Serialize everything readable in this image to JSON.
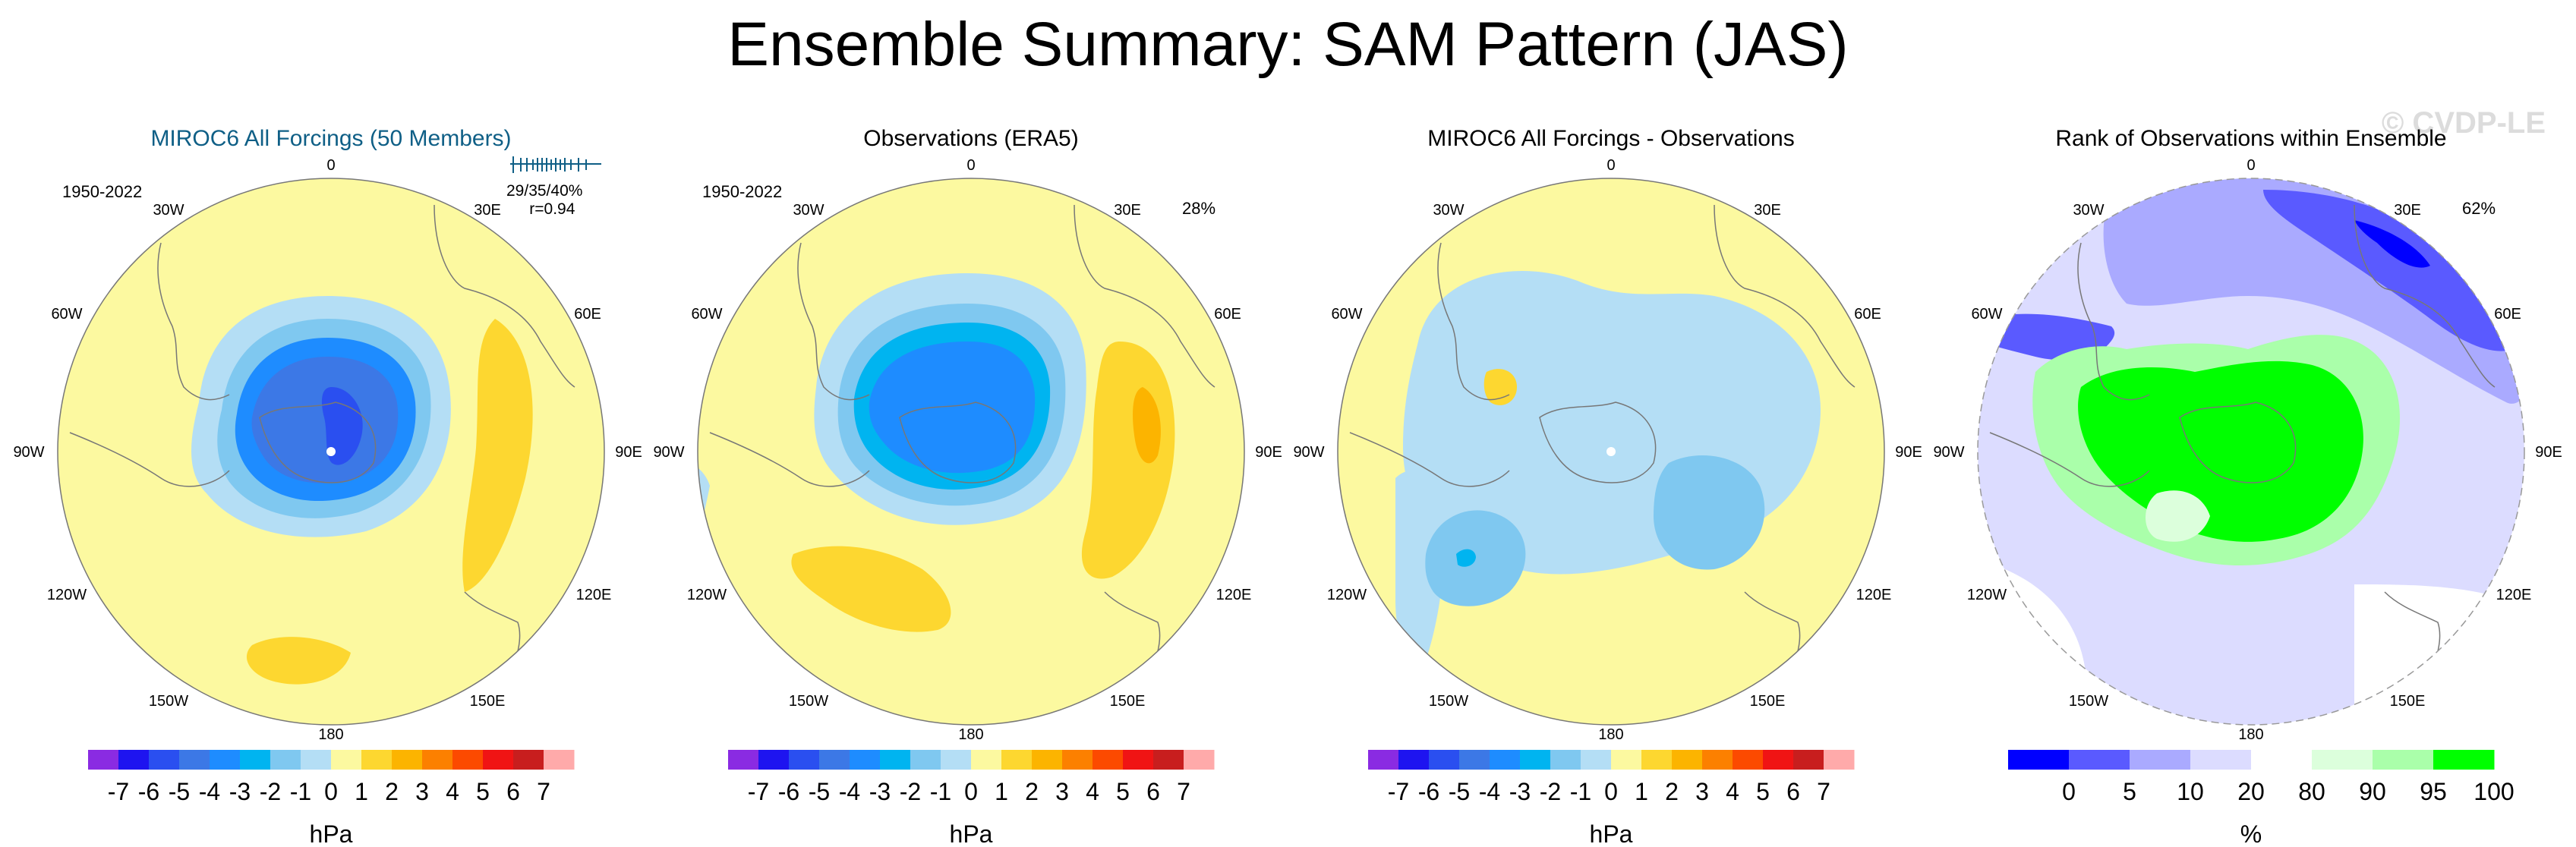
{
  "title": "Ensemble Summary: SAM Pattern (JAS)",
  "watermark": "© CVDP-LE",
  "colors": {
    "model_title": "#0f5f86",
    "land_outline": "#777777",
    "pressure_palette": [
      "#8a2be2",
      "#1e14f0",
      "#2a4ff0",
      "#3c78e6",
      "#1e8cff",
      "#00b4f0",
      "#7fc8f0",
      "#b4def5",
      "#fcf9a0",
      "#fdd730",
      "#fcb400",
      "#fc8000",
      "#fc4a00",
      "#f01414",
      "#c81e1e",
      "#ffaaaa"
    ],
    "rank_palette": [
      "#0000ff",
      "#5a5aff",
      "#aaaaff",
      "#dcdcff",
      "#ffffff",
      "#dcffdc",
      "#aaffaa",
      "#00ff00"
    ]
  },
  "meridian_labels": [
    "0",
    "30E",
    "60E",
    "90E",
    "120E",
    "150E",
    "180",
    "150W",
    "120W",
    "90W",
    "60W",
    "30W"
  ],
  "chart_data": [
    {
      "type": "heatmap",
      "title": "MIROC6 All Forcings (50 Members)",
      "period": "1950-2022",
      "stats_pct": "29/35/40%",
      "stats_r": "r=0.94",
      "units": "hPa",
      "levels": [
        -7,
        -6,
        -5,
        -4,
        -3,
        -2,
        -1,
        0,
        1,
        2,
        3,
        4,
        5,
        6,
        7
      ],
      "level_labels": [
        "-7",
        "-6",
        "-5",
        "-4",
        "-3",
        "-2",
        "-1",
        "0",
        "1",
        "2",
        "3",
        "4",
        "5",
        "6",
        "7"
      ],
      "features": [
        {
          "region": "antarctic-center",
          "value": -5
        },
        {
          "region": "south-pacific",
          "value": 1
        },
        {
          "region": "indian-ocean",
          "value": 1
        }
      ]
    },
    {
      "type": "heatmap",
      "title": "Observations (ERA5)",
      "period": "1950-2022",
      "pct": "28%",
      "units": "hPa",
      "levels": [
        -7,
        -6,
        -5,
        -4,
        -3,
        -2,
        -1,
        0,
        1,
        2,
        3,
        4,
        5,
        6,
        7
      ],
      "level_labels": [
        "-7",
        "-6",
        "-5",
        "-4",
        "-3",
        "-2",
        "-1",
        "0",
        "1",
        "2",
        "3",
        "4",
        "5",
        "6",
        "7"
      ],
      "features": [
        {
          "region": "antarctic-center",
          "value": -4
        },
        {
          "region": "south-pacific",
          "value": 1
        },
        {
          "region": "indian-ocean",
          "value": 3
        }
      ]
    },
    {
      "type": "heatmap",
      "title": "MIROC6 All Forcings - Observations",
      "units": "hPa",
      "levels": [
        -7,
        -6,
        -5,
        -4,
        -3,
        -2,
        -1,
        0,
        1,
        2,
        3,
        4,
        5,
        6,
        7
      ],
      "level_labels": [
        "-7",
        "-6",
        "-5",
        "-4",
        "-3",
        "-2",
        "-1",
        "0",
        "1",
        "2",
        "3",
        "4",
        "5",
        "6",
        "7"
      ],
      "features": [
        {
          "region": "antarctic-center",
          "value": -1
        },
        {
          "region": "ross-sea",
          "value": -2
        },
        {
          "region": "antarctic-peninsula",
          "value": 1
        }
      ]
    },
    {
      "type": "heatmap",
      "title": "Rank of Observations within Ensemble",
      "pct": "62%",
      "units": "%",
      "levels": [
        0,
        5,
        10,
        20,
        80,
        90,
        95,
        100
      ],
      "level_labels": [
        "0",
        "5",
        "10",
        "20",
        "80",
        "90",
        "95",
        "100"
      ],
      "features": [
        {
          "region": "antarctic-center",
          "value": 100
        },
        {
          "region": "south-atlantic-indian",
          "value": 0
        },
        {
          "region": "drake-passage",
          "value": 5
        }
      ]
    }
  ]
}
